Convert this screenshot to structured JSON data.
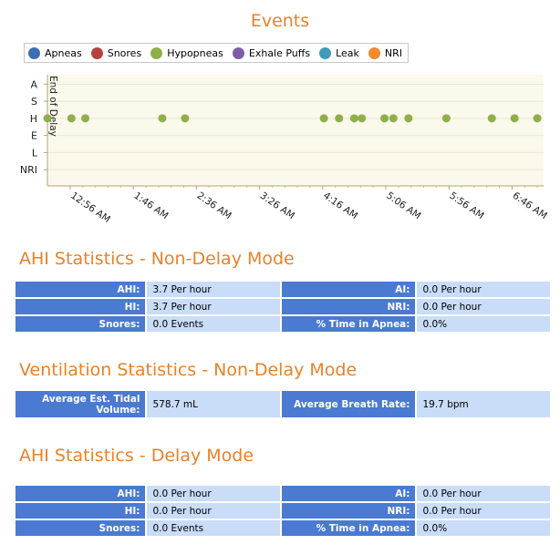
{
  "chart_data": {
    "type": "scatter",
    "title": "Events",
    "legend": [
      {
        "name": "Apneas",
        "color": "#3e6db5"
      },
      {
        "name": "Snores",
        "color": "#b5423e"
      },
      {
        "name": "Hypopneas",
        "color": "#8eb04a"
      },
      {
        "name": "Exhale Puffs",
        "color": "#7d5ea6"
      },
      {
        "name": "Leak",
        "color": "#3f9bb8"
      },
      {
        "name": "NRI",
        "color": "#f08a2c"
      }
    ],
    "legend_position": "top",
    "y_categories": [
      "A",
      "S",
      "H",
      "E",
      "L",
      "NRI"
    ],
    "x_tick_labels": [
      "12:56 AM",
      "1:46 AM",
      "2:36 AM",
      "3:26 AM",
      "4:16 AM",
      "5:06 AM",
      "5:56 AM",
      "6:46 AM"
    ],
    "x_ticks_min": [
      776,
      826,
      876,
      926,
      976,
      1026,
      1076,
      1126
    ],
    "xlim_min": [
      758,
      1151
    ],
    "annotation": "End of Delay",
    "annotation_x_min": 758,
    "series": [
      {
        "name": "Hypopneas",
        "category": "H",
        "x_min": [
          758,
          777,
          788,
          849,
          867,
          977,
          989,
          1001,
          1007,
          1025,
          1032,
          1044,
          1074,
          1110,
          1128,
          1146
        ]
      }
    ]
  },
  "sections": {
    "ahi_non_delay": {
      "title": "AHI Statistics - Non-Delay Mode",
      "rows": [
        {
          "k1": "AHI:",
          "v1": "3.7 Per hour",
          "k2": "AI:",
          "v2": "0.0 Per hour"
        },
        {
          "k1": "HI:",
          "v1": "3.7 Per hour",
          "k2": "NRI:",
          "v2": "0.0 Per hour"
        },
        {
          "k1": "Snores:",
          "v1": "0.0 Events",
          "k2": "% Time in Apnea:",
          "v2": "0.0%"
        }
      ]
    },
    "ventilation": {
      "title": "Ventilation Statistics - Non-Delay Mode",
      "k1": "Average Est. Tidal Volume:",
      "v1": "578.7 mL",
      "k2": "Average Breath Rate:",
      "v2": "19.7 bpm"
    },
    "ahi_delay": {
      "title": "AHI Statistics - Delay Mode",
      "rows": [
        {
          "k1": "AHI:",
          "v1": "0.0 Per hour",
          "k2": "AI:",
          "v2": "0.0 Per hour"
        },
        {
          "k1": "HI:",
          "v1": "0.0 Per hour",
          "k2": "NRI:",
          "v2": "0.0 Per hour"
        },
        {
          "k1": "Snores:",
          "v1": "0.0 Events",
          "k2": "% Time in Apnea:",
          "v2": "0.0%"
        }
      ]
    }
  }
}
